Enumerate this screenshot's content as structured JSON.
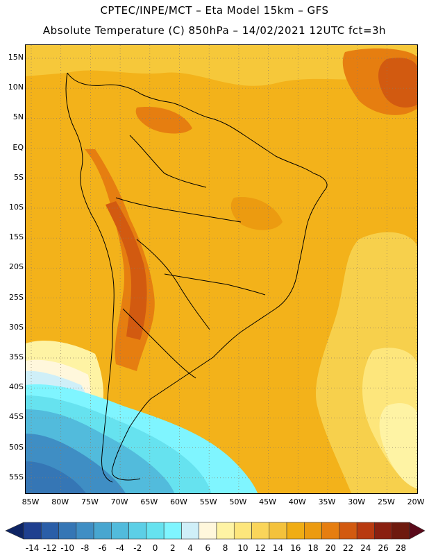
{
  "title_line1": "CPTEC/INPE/MCT –  Eta Model 15km – GFS",
  "title_line2": "Absolute Temperature (C) 850hPa – 14/02/2021 12UTC fct=3h",
  "lat_labels": [
    "15N",
    "10N",
    "5N",
    "EQ",
    "5S",
    "10S",
    "15S",
    "20S",
    "25S",
    "30S",
    "35S",
    "40S",
    "45S",
    "50S",
    "55S"
  ],
  "lon_labels": [
    "85W",
    "80W",
    "75W",
    "70W",
    "65W",
    "60W",
    "55W",
    "50W",
    "45W",
    "40W",
    "35W",
    "30W",
    "25W",
    "20W"
  ],
  "colorbar": {
    "labels": [
      "-14",
      "-12",
      "-10",
      "-8",
      "-6",
      "-4",
      "-2",
      "0",
      "2",
      "4",
      "6",
      "8",
      "10",
      "12",
      "14",
      "16",
      "18",
      "20",
      "22",
      "24",
      "26",
      "28"
    ],
    "colors": [
      "#1f3f8f",
      "#2a5ea8",
      "#3576b5",
      "#3f8ec4",
      "#48a6d0",
      "#52bbdc",
      "#5ccfe6",
      "#66e2ef",
      "#7ff5ff",
      "#cfeff8",
      "#fff7dc",
      "#fef3a4",
      "#fde67c",
      "#fad55a",
      "#f4c23c",
      "#f0ad14",
      "#ec9b10",
      "#e67e10",
      "#d25a10",
      "#b83a10",
      "#8a2010",
      "#6e1a0e"
    ],
    "under_color": "#0e2464",
    "over_color": "#5a0a1a"
  }
}
